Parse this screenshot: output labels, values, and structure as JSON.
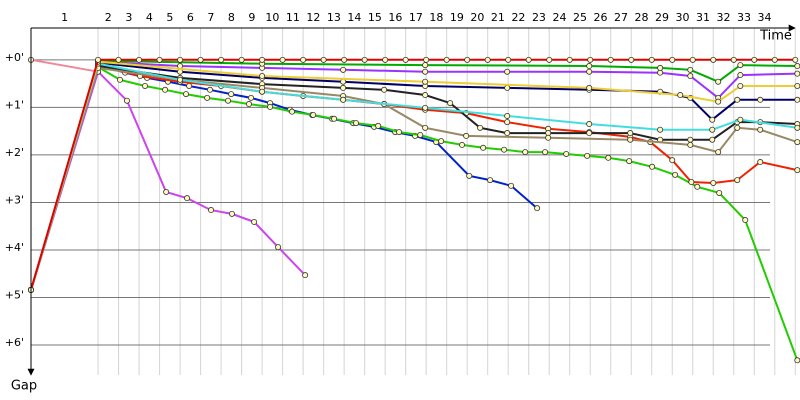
{
  "chart_data": {
    "type": "line",
    "xlabel": "Time",
    "ylabel": "Gap",
    "xlim": [
      0,
      37.5
    ],
    "ylim": [
      -0.67,
      6.63
    ],
    "grid": true,
    "xticks": [
      {
        "value": 1.64,
        "label": "1"
      },
      {
        "value": 3.77,
        "label": "2"
      },
      {
        "value": 4.77,
        "label": "3"
      },
      {
        "value": 5.77,
        "label": "4"
      },
      {
        "value": 6.77,
        "label": "5"
      },
      {
        "value": 7.77,
        "label": "6"
      },
      {
        "value": 8.77,
        "label": "7"
      },
      {
        "value": 9.77,
        "label": "8"
      },
      {
        "value": 10.77,
        "label": "9"
      },
      {
        "value": 11.77,
        "label": "10"
      },
      {
        "value": 12.77,
        "label": "11"
      },
      {
        "value": 13.77,
        "label": "12"
      },
      {
        "value": 14.77,
        "label": "13"
      },
      {
        "value": 15.77,
        "label": "14"
      },
      {
        "value": 16.77,
        "label": "15"
      },
      {
        "value": 17.77,
        "label": "16"
      },
      {
        "value": 18.77,
        "label": "17"
      },
      {
        "value": 19.77,
        "label": "18"
      },
      {
        "value": 20.77,
        "label": "19"
      },
      {
        "value": 21.77,
        "label": "20"
      },
      {
        "value": 22.77,
        "label": "21"
      },
      {
        "value": 23.77,
        "label": "22"
      },
      {
        "value": 24.77,
        "label": "23"
      },
      {
        "value": 25.77,
        "label": "24"
      },
      {
        "value": 26.77,
        "label": "25"
      },
      {
        "value": 27.77,
        "label": "26"
      },
      {
        "value": 28.77,
        "label": "27"
      },
      {
        "value": 29.77,
        "label": "28"
      },
      {
        "value": 30.77,
        "label": "29"
      },
      {
        "value": 31.77,
        "label": "30"
      },
      {
        "value": 32.77,
        "label": "31"
      },
      {
        "value": 33.77,
        "label": "32"
      },
      {
        "value": 34.77,
        "label": "33"
      },
      {
        "value": 35.77,
        "label": "34"
      }
    ],
    "yticks": [
      {
        "value": 0,
        "label": "+0'"
      },
      {
        "value": 1,
        "label": "+1'"
      },
      {
        "value": 2,
        "label": "+2'"
      },
      {
        "value": 3,
        "label": "+3'"
      },
      {
        "value": 4,
        "label": "+4'"
      },
      {
        "value": 5,
        "label": "+5'"
      },
      {
        "value": 6,
        "label": "+6'"
      }
    ],
    "series": [
      {
        "color": "#e00000",
        "x": [
          0,
          3.27,
          4.27,
          5.27,
          6.27,
          7.27,
          8.27,
          9.27,
          10.27,
          11.27,
          12.27,
          13.27,
          14.27,
          15.27,
          16.27,
          17.27,
          18.27,
          19.27,
          20.27,
          21.27,
          22.27,
          23.27,
          24.27,
          25.27,
          26.27,
          27.27,
          28.27,
          29.27,
          30.27,
          31.27,
          32.27,
          33.27,
          34.27,
          35.27,
          36.27,
          37.27
        ],
        "values": [
          4.84,
          0,
          0,
          0,
          0,
          0,
          0,
          0,
          0,
          0,
          0,
          0,
          0,
          0,
          0,
          0,
          0,
          0,
          0,
          0,
          0,
          0,
          0,
          0,
          0,
          0,
          0,
          0,
          0,
          0,
          0,
          0,
          0,
          0,
          0,
          0
        ]
      },
      {
        "color": "#ee8899",
        "x": [
          0,
          3.27
        ],
        "values": [
          0,
          0.25
        ]
      },
      {
        "color": "#cc44ee",
        "x": [
          0,
          3.27,
          4.68,
          6.59,
          7.61,
          8.78,
          9.8,
          10.88,
          12.05,
          13.37
        ],
        "values": [
          4.84,
          0.25,
          0.86,
          2.78,
          2.91,
          3.16,
          3.24,
          3.41,
          3.94,
          4.53
        ]
      },
      {
        "color": "#0022cc",
        "x": [
          0,
          3.27,
          4.59,
          5.66,
          6.68,
          7.71,
          8.73,
          9.76,
          10.73,
          11.66,
          12.63,
          13.71,
          14.68,
          15.71,
          16.73,
          17.76,
          18.73,
          19.76,
          21.37,
          22.39,
          23.41,
          24.68
        ],
        "values": [
          4.84,
          0.11,
          0.27,
          0.38,
          0.46,
          0.55,
          0.63,
          0.72,
          0.8,
          0.91,
          1.05,
          1.16,
          1.24,
          1.33,
          1.41,
          1.52,
          1.6,
          1.73,
          2.44,
          2.53,
          2.65,
          3.12
        ]
      },
      {
        "color": "#22cc00",
        "x": [
          0,
          3.27,
          4.34,
          5.56,
          6.54,
          7.56,
          8.59,
          9.61,
          10.63,
          11.66,
          12.73,
          13.76,
          14.78,
          15.85,
          16.93,
          17.95,
          18.98,
          20.0,
          21.02,
          22.05,
          23.07,
          24.1,
          25.07,
          26.1,
          27.12,
          28.15,
          29.17,
          30.29,
          31.41,
          32.49,
          33.56,
          34.83,
          37.37
        ],
        "values": [
          4.84,
          0.15,
          0.42,
          0.55,
          0.63,
          0.72,
          0.8,
          0.86,
          0.93,
          0.99,
          1.09,
          1.16,
          1.24,
          1.33,
          1.39,
          1.52,
          1.58,
          1.71,
          1.79,
          1.85,
          1.89,
          1.94,
          1.94,
          1.98,
          2.02,
          2.06,
          2.13,
          2.25,
          2.42,
          2.67,
          2.8,
          3.37,
          6.32
        ]
      },
      {
        "color": "#ee2200",
        "x": [
          0,
          3.27,
          5.32,
          7.27,
          9.27,
          11.27,
          13.27,
          15.22,
          17.22,
          19.22,
          21.22,
          23.22,
          25.22,
          27.22,
          29.22,
          30.2,
          31.27,
          32.2,
          33.27,
          34.44,
          35.56,
          37.37
        ],
        "values": [
          4.84,
          0.11,
          0.34,
          0.46,
          0.55,
          0.67,
          0.76,
          0.84,
          0.93,
          1.05,
          1.12,
          1.31,
          1.45,
          1.52,
          1.62,
          1.73,
          2.11,
          2.57,
          2.59,
          2.53,
          2.15,
          2.32
        ]
      },
      {
        "color": "#000066",
        "x": [
          0,
          3.27,
          7.27,
          11.27,
          15.22,
          19.22,
          23.22,
          27.22,
          30.68,
          32.15,
          33.22,
          34.44,
          35.56,
          37.37
        ],
        "values": [
          4.84,
          0.06,
          0.25,
          0.38,
          0.46,
          0.55,
          0.59,
          0.63,
          0.67,
          0.8,
          1.26,
          0.84,
          0.84,
          0.84
        ]
      },
      {
        "color": "#222222",
        "x": [
          0,
          3.27,
          7.27,
          11.27,
          15.22,
          17.22,
          19.22,
          20.44,
          21.9,
          23.22,
          25.22,
          27.22,
          29.22,
          30.68,
          32.15,
          33.22,
          34.44,
          35.56,
          37.37
        ],
        "values": [
          4.84,
          0.13,
          0.38,
          0.51,
          0.59,
          0.63,
          0.74,
          0.91,
          1.43,
          1.54,
          1.54,
          1.54,
          1.54,
          1.68,
          1.68,
          1.68,
          1.31,
          1.31,
          1.35
        ]
      },
      {
        "color": "#9933ff",
        "x": [
          0,
          3.27,
          7.27,
          11.27,
          15.22,
          19.22,
          23.22,
          27.22,
          30.68,
          32.15,
          33.51,
          34.59,
          37.37
        ],
        "values": [
          4.84,
          0.04,
          0.13,
          0.17,
          0.21,
          0.25,
          0.25,
          0.25,
          0.27,
          0.34,
          0.8,
          0.32,
          0.29
        ]
      },
      {
        "color": "#00aa00",
        "x": [
          0,
          3.27,
          11.27,
          19.22,
          27.22,
          30.68,
          32.15,
          33.51,
          34.59,
          37.37
        ],
        "values": [
          4.84,
          0.02,
          0.08,
          0.11,
          0.13,
          0.17,
          0.21,
          0.46,
          0.11,
          0.13
        ]
      },
      {
        "color": "#998866",
        "x": [
          0,
          3.27,
          7.27,
          11.27,
          15.22,
          17.22,
          19.22,
          21.22,
          25.22,
          29.22,
          32.15,
          33.51,
          34.44,
          35.56,
          37.37
        ],
        "values": [
          4.84,
          0.17,
          0.42,
          0.59,
          0.76,
          0.93,
          1.43,
          1.6,
          1.64,
          1.68,
          1.79,
          1.94,
          1.43,
          1.47,
          1.73
        ]
      },
      {
        "color": "#44dddd",
        "x": [
          0,
          3.27,
          7.27,
          11.27,
          15.22,
          19.22,
          23.22,
          27.22,
          30.68,
          33.22,
          34.59,
          37.37
        ],
        "values": [
          4.84,
          0.08,
          0.42,
          0.67,
          0.84,
          1.01,
          1.18,
          1.35,
          1.47,
          1.47,
          1.26,
          1.43
        ]
      },
      {
        "color": "#eecc33",
        "x": [
          0,
          3.27,
          11.27,
          19.22,
          27.22,
          31.66,
          33.51,
          34.59,
          37.37
        ],
        "values": [
          4.84,
          0.04,
          0.34,
          0.46,
          0.59,
          0.74,
          0.88,
          0.55,
          0.55
        ]
      }
    ]
  }
}
